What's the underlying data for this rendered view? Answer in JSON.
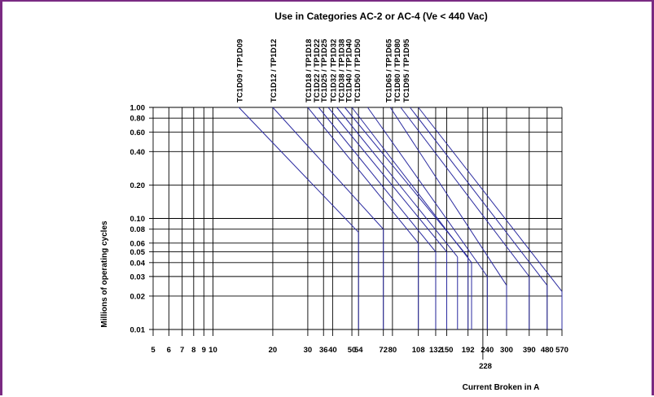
{
  "chart_data": {
    "type": "line",
    "title": "Use in Categories AC-2 or AC-4 (Ve < 440 Vac)",
    "xlabel": "Current Broken in A",
    "ylabel": "Millions of operating cycles",
    "x_scale": "log",
    "y_scale": "log",
    "xlim": [
      5,
      570
    ],
    "ylim": [
      0.01,
      1.0
    ],
    "x_ticks": [
      "5",
      "6",
      "7",
      "8",
      "9",
      "10",
      "20",
      "30",
      "36",
      "40",
      "50",
      "54",
      "72",
      "80",
      "108",
      "132",
      "150",
      "192",
      "240",
      "300",
      "390",
      "480",
      "570"
    ],
    "x_tick_extra": "228",
    "y_ticks": [
      "1.00",
      "0.80",
      "0.60",
      "0.40",
      "0.20",
      "0.10",
      "0.08",
      "0.06",
      "0.05",
      "0.04",
      "0.03",
      "0.02",
      "0.01"
    ],
    "series": [
      {
        "name": "TC1D09 / TP1D09",
        "x": [
          13.5,
          54
        ],
        "y": [
          1.0,
          0.075
        ]
      },
      {
        "name": "TC1D12 / TP1D12",
        "x": [
          20,
          72
        ],
        "y": [
          1.0,
          0.08
        ]
      },
      {
        "name": "TC1D18 / TP1D18",
        "x": [
          30,
          108
        ],
        "y": [
          1.0,
          0.06
        ]
      },
      {
        "name": "TC1D22 / TP1D22",
        "x": [
          34,
          132
        ],
        "y": [
          1.0,
          0.05
        ]
      },
      {
        "name": "TC1D25 / TP1D25",
        "x": [
          38,
          150
        ],
        "y": [
          1.0,
          0.05
        ]
      },
      {
        "name": "TC1D32 / TP1D32",
        "x": [
          42,
          170
        ],
        "y": [
          1.0,
          0.045
        ]
      },
      {
        "name": "TC1D38 / TP1D38",
        "x": [
          46,
          192
        ],
        "y": [
          1.0,
          0.045
        ]
      },
      {
        "name": "TC1D40 / TP1D40",
        "x": [
          50,
          200
        ],
        "y": [
          1.0,
          0.04
        ]
      },
      {
        "name": "TC1D50 / TP1D50",
        "x": [
          60,
          240
        ],
        "y": [
          1.0,
          0.03
        ]
      },
      {
        "name": "TC1D65 / TP1D65",
        "x": [
          78,
          300
        ],
        "y": [
          1.0,
          0.025
        ]
      },
      {
        "name": "TC1D80 / TP1D80",
        "x": [
          88,
          390
        ],
        "y": [
          1.0,
          0.03
        ]
      },
      {
        "name": "TC1D95 / TP1D95",
        "x": [
          98,
          480
        ],
        "y": [
          1.0,
          0.025
        ]
      },
      {
        "name": "",
        "x": [
          108,
          570
        ],
        "y": [
          1.0,
          0.022
        ]
      }
    ],
    "model_labels": [
      {
        "text": "TC1D09 / TP1D09",
        "x": 13.5
      },
      {
        "text": "TC1D12 / TP1D12",
        "x": 20
      },
      {
        "text": "TC1D18 / TP1D18",
        "x": 30
      },
      {
        "text": "TC1D22 / TP1D22",
        "x": 33
      },
      {
        "text": "TC1D25 / TP1D25",
        "x": 36
      },
      {
        "text": "TC1D32 / TP1D32",
        "x": 40
      },
      {
        "text": "TC1D38 / TP1D38",
        "x": 44
      },
      {
        "text": "TC1D40 / TP1D40",
        "x": 48
      },
      {
        "text": "TC1D50 / TP1D50",
        "x": 53
      },
      {
        "text": "TC1D65 / TP1D65",
        "x": 76
      },
      {
        "text": "TC1D80 / TP1D80",
        "x": 84
      },
      {
        "text": "TC1D95 / TP1D95",
        "x": 93
      }
    ],
    "grid": true,
    "colors": {
      "curve": "#2b2ba0",
      "grid": "#000000",
      "border": "#7a2a82"
    }
  }
}
